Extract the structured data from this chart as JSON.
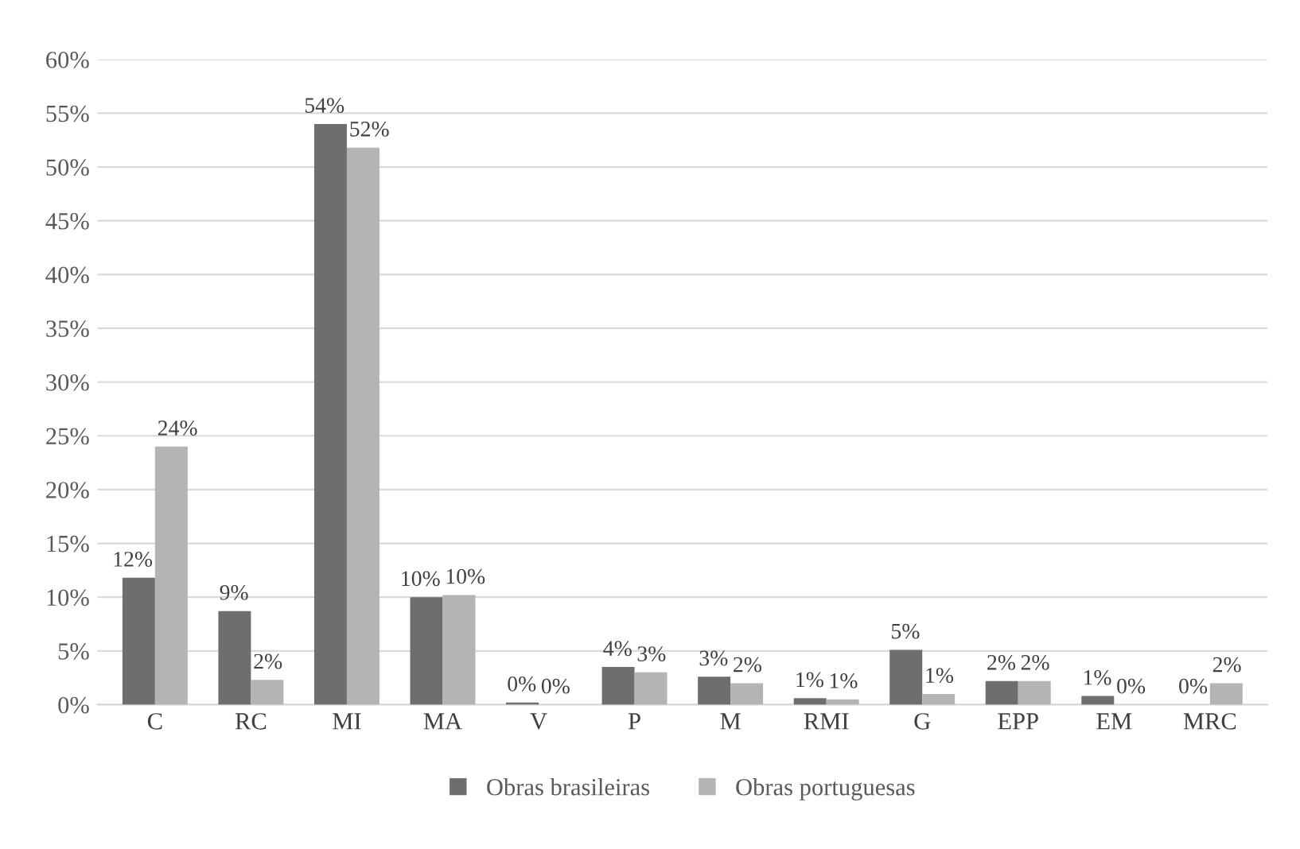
{
  "chart_data": {
    "type": "bar",
    "categories": [
      "C",
      "RC",
      "MI",
      "MA",
      "V",
      "P",
      "M",
      "RMI",
      "G",
      "EPP",
      "EM",
      "MRC"
    ],
    "series": [
      {
        "name": "Obras brasileiras",
        "color": "#6e6e6e",
        "values": [
          11.8,
          8.7,
          54,
          10,
          0.2,
          3.5,
          2.6,
          0.6,
          5.1,
          2.2,
          0.8,
          0
        ],
        "value_labels": [
          "12%",
          "9%",
          "54%",
          "10%",
          "0%",
          "4%",
          "3%",
          "1%",
          "5%",
          "2%",
          "1%",
          "0%"
        ]
      },
      {
        "name": "Obras portuguesas",
        "color": "#b4b4b4",
        "values": [
          24,
          2.3,
          51.8,
          10.2,
          0,
          3,
          2,
          0.5,
          1,
          2.2,
          0,
          2
        ],
        "value_labels": [
          "24%",
          "2%",
          "52%",
          "10%",
          "0%",
          "3%",
          "2%",
          "1%",
          "1%",
          "2%",
          "0%",
          "2%"
        ]
      }
    ],
    "ylim": [
      0,
      60
    ],
    "yticks": [
      {
        "value": 0,
        "label": "0%"
      },
      {
        "value": 5,
        "label": "5%"
      },
      {
        "value": 10,
        "label": "10%"
      },
      {
        "value": 15,
        "label": "15%"
      },
      {
        "value": 20,
        "label": "20%"
      },
      {
        "value": 25,
        "label": "25%"
      },
      {
        "value": 30,
        "label": "30%"
      },
      {
        "value": 35,
        "label": "35%"
      },
      {
        "value": 40,
        "label": "40%"
      },
      {
        "value": 45,
        "label": "45%"
      },
      {
        "value": 50,
        "label": "50%"
      },
      {
        "value": 55,
        "label": "55%"
      },
      {
        "value": 60,
        "label": "60%"
      }
    ],
    "grid": "y",
    "legend": "bottom"
  }
}
